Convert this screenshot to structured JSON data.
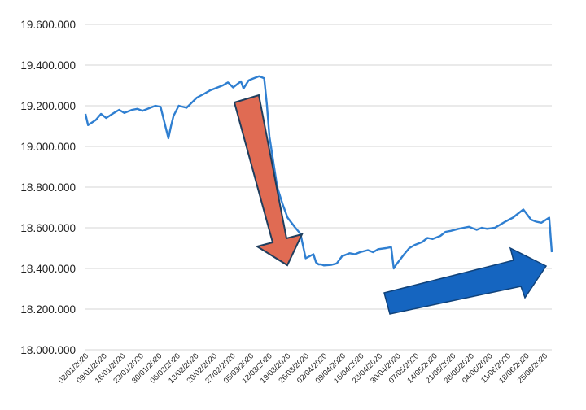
{
  "chart_data": {
    "type": "line",
    "title": "",
    "xlabel": "",
    "ylabel": "",
    "ylim": [
      18000000,
      19600000
    ],
    "y_ticks": [
      18000000,
      18200000,
      18400000,
      18600000,
      18800000,
      19000000,
      19200000,
      19400000,
      19600000
    ],
    "y_tick_labels": [
      "18.000.000",
      "18.200.000",
      "18.400.000",
      "18.600.000",
      "18.800.000",
      "19.000.000",
      "19.200.000",
      "19.400.000",
      "19.600.000"
    ],
    "x_tick_labels": [
      "02/01/2020",
      "09/01/2020",
      "16/01/2020",
      "23/01/2020",
      "30/01/2020",
      "06/02/2020",
      "13/02/2020",
      "20/02/2020",
      "27/02/2020",
      "05/03/2020",
      "12/03/2020",
      "19/03/2020",
      "26/03/2020",
      "02/04/2020",
      "09/04/2020",
      "16/04/2020",
      "23/04/2020",
      "30/04/2020",
      "07/05/2020",
      "14/05/2020",
      "21/05/2020",
      "28/05/2020",
      "04/06/2020",
      "11/06/2020",
      "18/06/2020",
      "25/06/2020"
    ],
    "grid": true,
    "line_color": "#2f7fd1",
    "series": [
      {
        "x": [
          "2020-01-02",
          "2020-01-03",
          "2020-01-06",
          "2020-01-08",
          "2020-01-10",
          "2020-01-13",
          "2020-01-15",
          "2020-01-17",
          "2020-01-20",
          "2020-01-22",
          "2020-01-24",
          "2020-01-27",
          "2020-01-29",
          "2020-01-31",
          "2020-02-03",
          "2020-02-04",
          "2020-02-05",
          "2020-02-07",
          "2020-02-10",
          "2020-02-12",
          "2020-02-14",
          "2020-02-17",
          "2020-02-19",
          "2020-02-21",
          "2020-02-24",
          "2020-02-26",
          "2020-02-28",
          "2020-03-02",
          "2020-03-03",
          "2020-03-05",
          "2020-03-06",
          "2020-03-09",
          "2020-03-11",
          "2020-03-12",
          "2020-03-13",
          "2020-03-16",
          "2020-03-18",
          "2020-03-20",
          "2020-03-23",
          "2020-03-25",
          "2020-03-27",
          "2020-03-30",
          "2020-03-31",
          "2020-04-01",
          "2020-04-02",
          "2020-04-03",
          "2020-04-06",
          "2020-04-08",
          "2020-04-10",
          "2020-04-13",
          "2020-04-15",
          "2020-04-17",
          "2020-04-20",
          "2020-04-22",
          "2020-04-24",
          "2020-04-27",
          "2020-04-29",
          "2020-04-30",
          "2020-05-01",
          "2020-05-04",
          "2020-05-06",
          "2020-05-08",
          "2020-05-11",
          "2020-05-13",
          "2020-05-15",
          "2020-05-18",
          "2020-05-20",
          "2020-05-22",
          "2020-05-25",
          "2020-05-27",
          "2020-05-29",
          "2020-06-01",
          "2020-06-03",
          "2020-06-05",
          "2020-06-08",
          "2020-06-10",
          "2020-06-12",
          "2020-06-15",
          "2020-06-17",
          "2020-06-19",
          "2020-06-22",
          "2020-06-24",
          "2020-06-26",
          "2020-06-29",
          "2020-06-30"
        ],
        "values": [
          19160000,
          19105000,
          19130000,
          19160000,
          19140000,
          19165000,
          19180000,
          19165000,
          19180000,
          19185000,
          19175000,
          19190000,
          19200000,
          19195000,
          19040000,
          19100000,
          19150000,
          19200000,
          19190000,
          19215000,
          19240000,
          19260000,
          19275000,
          19285000,
          19300000,
          19315000,
          19290000,
          19320000,
          19285000,
          19325000,
          19330000,
          19345000,
          19335000,
          19210000,
          19050000,
          18800000,
          18720000,
          18650000,
          18600000,
          18570000,
          18450000,
          18470000,
          18430000,
          18420000,
          18420000,
          18415000,
          18418000,
          18425000,
          18460000,
          18475000,
          18470000,
          18480000,
          18490000,
          18480000,
          18495000,
          18500000,
          18505000,
          18400000,
          18420000,
          18470000,
          18500000,
          18515000,
          18530000,
          18550000,
          18545000,
          18560000,
          18580000,
          18585000,
          18595000,
          18600000,
          18605000,
          18590000,
          18600000,
          18595000,
          18600000,
          18615000,
          18630000,
          18650000,
          18670000,
          18690000,
          18640000,
          18630000,
          18625000,
          18650000,
          18480000
        ]
      }
    ]
  },
  "annotations": {
    "down_arrow_color": "#e06b53",
    "up_arrow_color": "#1565c0"
  }
}
